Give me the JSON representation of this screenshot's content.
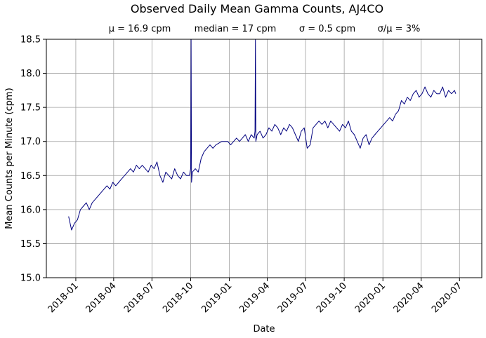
{
  "chart_data": {
    "type": "line",
    "title": "Observed Daily Mean Gamma Counts, AJ4CO",
    "subtitle": {
      "mean": "μ = 16.9 cpm",
      "median": "median = 17 cpm",
      "sigma": "σ = 0.5 cpm",
      "cv": "σ/μ = 3%"
    },
    "xlabel": "Date",
    "ylabel": "Mean Counts per Minute (cpm)",
    "xlim": [
      "2017-10-23",
      "2020-08-23"
    ],
    "ylim": [
      15.0,
      18.5
    ],
    "grid": true,
    "line_color": "#00007f",
    "x_ticks": [
      "2018-01",
      "2018-04",
      "2018-07",
      "2018-10",
      "2019-01",
      "2019-04",
      "2019-07",
      "2019-10",
      "2020-01",
      "2020-04",
      "2020-07"
    ],
    "x_tick_dates": [
      "2018-01-01",
      "2018-04-01",
      "2018-07-01",
      "2018-10-01",
      "2019-01-01",
      "2019-04-01",
      "2019-07-01",
      "2019-10-01",
      "2020-01-01",
      "2020-04-01",
      "2020-07-01"
    ],
    "y_ticks": [
      15.0,
      15.5,
      16.0,
      16.5,
      17.0,
      17.5,
      18.0,
      18.5
    ],
    "y_tick_labels": [
      "15.0",
      "15.5",
      "16.0",
      "16.5",
      "17.0",
      "17.5",
      "18.0",
      "18.5"
    ],
    "series": [
      {
        "x": [
          "2017-12-15",
          "2017-12-22",
          "2017-12-29",
          "2018-01-05",
          "2018-01-12",
          "2018-01-19",
          "2018-01-26",
          "2018-02-02",
          "2018-02-09",
          "2018-02-16",
          "2018-02-23",
          "2018-03-02",
          "2018-03-09",
          "2018-03-16",
          "2018-03-23",
          "2018-03-30",
          "2018-04-06",
          "2018-04-13",
          "2018-04-20",
          "2018-04-27",
          "2018-05-04",
          "2018-05-11",
          "2018-05-18",
          "2018-05-25",
          "2018-06-01",
          "2018-06-08",
          "2018-06-15",
          "2018-06-22",
          "2018-06-29",
          "2018-07-06",
          "2018-07-13",
          "2018-07-20",
          "2018-07-27",
          "2018-08-03",
          "2018-08-10",
          "2018-08-17",
          "2018-08-24",
          "2018-08-31",
          "2018-09-07",
          "2018-09-14",
          "2018-09-21",
          "2018-09-28",
          "2018-10-01",
          "2018-10-02",
          "2018-10-03",
          "2018-10-05",
          "2018-10-12",
          "2018-10-19",
          "2018-10-26",
          "2018-11-02",
          "2018-11-09",
          "2018-11-16",
          "2018-11-23",
          "2018-11-30",
          "2018-12-14",
          "2018-12-28",
          "2019-01-04",
          "2019-01-11",
          "2019-01-18",
          "2019-01-25",
          "2019-02-01",
          "2019-02-08",
          "2019-02-15",
          "2019-02-22",
          "2019-03-01",
          "2019-03-03",
          "2019-03-04",
          "2019-03-05",
          "2019-03-08",
          "2019-03-15",
          "2019-03-22",
          "2019-03-29",
          "2019-04-05",
          "2019-04-12",
          "2019-04-19",
          "2019-04-26",
          "2019-05-03",
          "2019-05-10",
          "2019-05-17",
          "2019-05-24",
          "2019-05-31",
          "2019-06-07",
          "2019-06-14",
          "2019-06-21",
          "2019-06-28",
          "2019-07-05",
          "2019-07-12",
          "2019-07-19",
          "2019-07-26",
          "2019-08-02",
          "2019-08-09",
          "2019-08-16",
          "2019-08-23",
          "2019-08-30",
          "2019-09-06",
          "2019-09-13",
          "2019-09-20",
          "2019-09-27",
          "2019-10-04",
          "2019-10-11",
          "2019-10-18",
          "2019-10-25",
          "2019-11-01",
          "2019-11-08",
          "2019-11-15",
          "2019-11-22",
          "2019-11-29",
          "2019-12-06",
          "2019-12-13",
          "2019-12-20",
          "2019-12-27",
          "2020-01-03",
          "2020-01-10",
          "2020-01-17",
          "2020-01-24",
          "2020-01-31",
          "2020-02-07",
          "2020-02-14",
          "2020-02-21",
          "2020-02-28",
          "2020-03-06",
          "2020-03-13",
          "2020-03-20",
          "2020-03-27",
          "2020-04-03",
          "2020-04-10",
          "2020-04-17",
          "2020-04-24",
          "2020-05-01",
          "2020-05-08",
          "2020-05-15",
          "2020-05-22",
          "2020-05-29",
          "2020-06-05",
          "2020-06-12",
          "2020-06-19",
          "2020-06-22"
        ],
        "y": [
          15.9,
          15.7,
          15.8,
          15.85,
          16.0,
          16.05,
          16.1,
          16.0,
          16.1,
          16.15,
          16.2,
          16.25,
          16.3,
          16.35,
          16.3,
          16.4,
          16.35,
          16.4,
          16.45,
          16.5,
          16.55,
          16.6,
          16.55,
          16.65,
          16.6,
          16.65,
          16.6,
          16.55,
          16.65,
          16.6,
          16.7,
          16.5,
          16.4,
          16.55,
          16.5,
          16.45,
          16.6,
          16.5,
          16.45,
          16.55,
          16.5,
          16.5,
          16.6,
          18.5,
          16.4,
          16.55,
          16.6,
          16.55,
          16.75,
          16.85,
          16.9,
          16.95,
          16.9,
          16.95,
          17.0,
          17.0,
          16.95,
          17.0,
          17.05,
          17.0,
          17.05,
          17.1,
          17.0,
          17.1,
          17.05,
          17.15,
          18.5,
          17.0,
          17.1,
          17.15,
          17.05,
          17.1,
          17.2,
          17.15,
          17.25,
          17.2,
          17.1,
          17.2,
          17.15,
          17.25,
          17.2,
          17.1,
          17.0,
          17.15,
          17.2,
          16.9,
          16.95,
          17.2,
          17.25,
          17.3,
          17.25,
          17.3,
          17.2,
          17.3,
          17.25,
          17.2,
          17.15,
          17.25,
          17.2,
          17.3,
          17.15,
          17.1,
          17.0,
          16.9,
          17.05,
          17.1,
          16.95,
          17.05,
          17.1,
          17.15,
          17.2,
          17.25,
          17.3,
          17.35,
          17.3,
          17.4,
          17.45,
          17.6,
          17.55,
          17.65,
          17.6,
          17.7,
          17.75,
          17.65,
          17.7,
          17.8,
          17.7,
          17.65,
          17.75,
          17.7,
          17.7,
          17.8,
          17.65,
          17.75,
          17.7,
          17.75,
          17.7
        ]
      }
    ]
  }
}
